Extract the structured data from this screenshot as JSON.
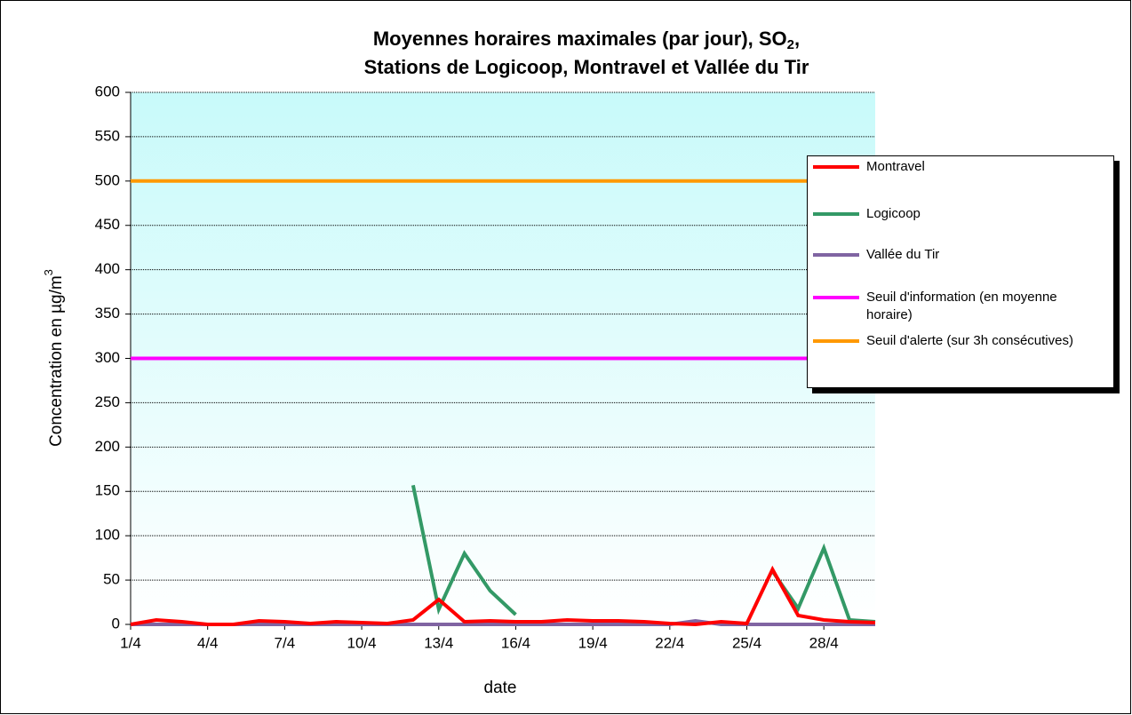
{
  "chart_data": {
    "type": "line",
    "title": [
      "Moyennes horaires maximales (par jour), SO",
      "2",
      ",",
      "Stations de Logicoop, Montravel et Vallée du Tir"
    ],
    "xlabel": "date",
    "ylabel": [
      "Concentration en µg/m",
      "3"
    ],
    "categories": [
      "1/4",
      null,
      null,
      "4/4",
      null,
      null,
      "7/4",
      null,
      null,
      "10/4",
      null,
      null,
      "13/4",
      null,
      null,
      "16/4",
      null,
      null,
      "19/4",
      null,
      null,
      "22/4",
      null,
      null,
      "25/4",
      null,
      null,
      "28/4",
      null,
      null
    ],
    "ylim": [
      0,
      600
    ],
    "yticks": [
      0,
      50,
      100,
      150,
      200,
      250,
      300,
      350,
      400,
      450,
      500,
      550,
      600
    ],
    "grid": true,
    "series": [
      {
        "name": "Seuil d'information (en moyenne horaire)",
        "color": "#ff00ff",
        "values": [
          300,
          300,
          300,
          300,
          300,
          300,
          300,
          300,
          300,
          300,
          300,
          300,
          300,
          300,
          300,
          300,
          300,
          300,
          300,
          300,
          300,
          300,
          300,
          300,
          300,
          300,
          300,
          300,
          300,
          300
        ]
      },
      {
        "name": "Seuil d'alerte (sur 3h consécutives)",
        "color": "#ff9900",
        "values": [
          500,
          500,
          500,
          500,
          500,
          500,
          500,
          500,
          500,
          500,
          500,
          500,
          500,
          500,
          500,
          500,
          500,
          500,
          500,
          500,
          500,
          500,
          500,
          500,
          500,
          500,
          500,
          500,
          500,
          500
        ]
      },
      {
        "name": "Logicoop",
        "color": "#339966",
        "values": [
          null,
          null,
          null,
          null,
          null,
          null,
          null,
          null,
          null,
          null,
          null,
          157,
          17,
          80,
          38,
          11,
          null,
          null,
          null,
          null,
          null,
          null,
          null,
          null,
          null,
          60,
          18,
          86,
          5,
          3
        ]
      },
      {
        "name": "Vallée du Tir",
        "color": "#8064a2",
        "values": [
          0,
          0,
          0,
          0,
          0,
          0,
          0,
          0,
          0,
          0,
          0,
          0,
          0,
          0,
          0,
          0,
          0,
          0,
          0,
          0,
          0,
          0,
          4,
          0,
          0,
          0,
          0,
          0,
          0,
          0
        ]
      },
      {
        "name": "Montravel",
        "color": "#ff0000",
        "values": [
          0,
          5,
          3,
          0,
          0,
          4,
          3,
          1,
          3,
          2,
          1,
          5,
          28,
          3,
          4,
          3,
          3,
          5,
          4,
          4,
          3,
          1,
          0,
          3,
          1,
          62,
          10,
          5,
          3,
          2
        ]
      }
    ],
    "legend_order": [
      "Montravel",
      "Logicoop",
      "Vallée du Tir",
      "Seuil d'information (en moyenne horaire)",
      "Seuil d'alerte (sur 3h consécutives)"
    ]
  }
}
